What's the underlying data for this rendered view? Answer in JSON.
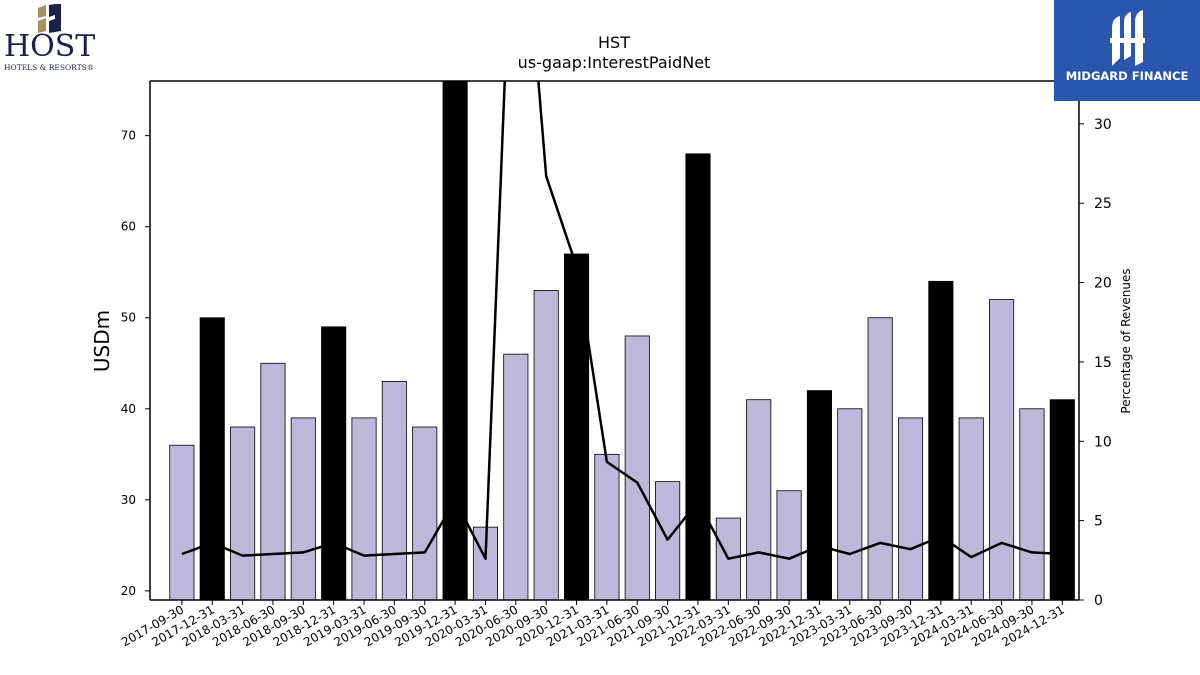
{
  "branding": {
    "host_logo_word": "HOST",
    "host_logo_sub": "HOTELS & RESORTS®",
    "midgard_logo_text": "MIDGARD FINANCE",
    "midgard_color": "#2a57ad",
    "host_color": "#1c1f4a",
    "host_gold": "#a8905a"
  },
  "chart_data": {
    "type": "bar",
    "title": "HST",
    "subtitle": "us-gaap:InterestPaidNet",
    "ylabel": "USDm",
    "y2label": "Percentage of Revenues",
    "ylim": [
      19,
      76
    ],
    "y2lim": [
      0,
      32.7
    ],
    "yticks": [
      20,
      30,
      40,
      50,
      60,
      70
    ],
    "y2ticks": [
      0,
      5,
      10,
      15,
      20,
      25,
      30
    ],
    "grid": false,
    "colors": {
      "quarter_bar": "#bdb8d9",
      "year_end_bar": "#000000",
      "line": "#000000"
    },
    "categories": [
      "2017-09-30",
      "2017-12-31",
      "2018-03-31",
      "2018-06-30",
      "2018-09-30",
      "2018-12-31",
      "2019-03-31",
      "2019-06-30",
      "2019-09-30",
      "2019-12-31",
      "2020-03-31",
      "2020-06-30",
      "2020-09-30",
      "2020-12-31",
      "2021-03-31",
      "2021-06-30",
      "2021-09-30",
      "2021-12-31",
      "2022-03-31",
      "2022-06-30",
      "2022-09-30",
      "2022-12-31",
      "2023-03-31",
      "2023-06-30",
      "2023-09-30",
      "2023-12-31",
      "2024-03-31",
      "2024-06-30",
      "2024-09-30",
      "2024-12-31"
    ],
    "series": [
      {
        "kind": "bar",
        "values": [
          36,
          50,
          38,
          45,
          39,
          49,
          39,
          43,
          38,
          76,
          27,
          46,
          53,
          57,
          35,
          48,
          32,
          68,
          28,
          41,
          31,
          42,
          40,
          50,
          39,
          54,
          39,
          52,
          40,
          41
        ],
        "year_end": [
          false,
          true,
          false,
          false,
          false,
          true,
          false,
          false,
          false,
          true,
          false,
          false,
          false,
          true,
          false,
          false,
          false,
          true,
          false,
          false,
          false,
          true,
          false,
          false,
          false,
          true,
          false,
          false,
          false,
          true
        ]
      },
      {
        "kind": "line",
        "axis": "right",
        "values": [
          2.9,
          3.6,
          2.8,
          2.9,
          3.0,
          3.6,
          2.8,
          2.9,
          3.0,
          6.3,
          2.6,
          50.0,
          26.7,
          21.0,
          8.7,
          7.4,
          3.8,
          6.2,
          2.6,
          3.0,
          2.6,
          3.4,
          2.9,
          3.6,
          3.2,
          4.0,
          2.7,
          3.6,
          3.0,
          2.9
        ]
      }
    ]
  }
}
